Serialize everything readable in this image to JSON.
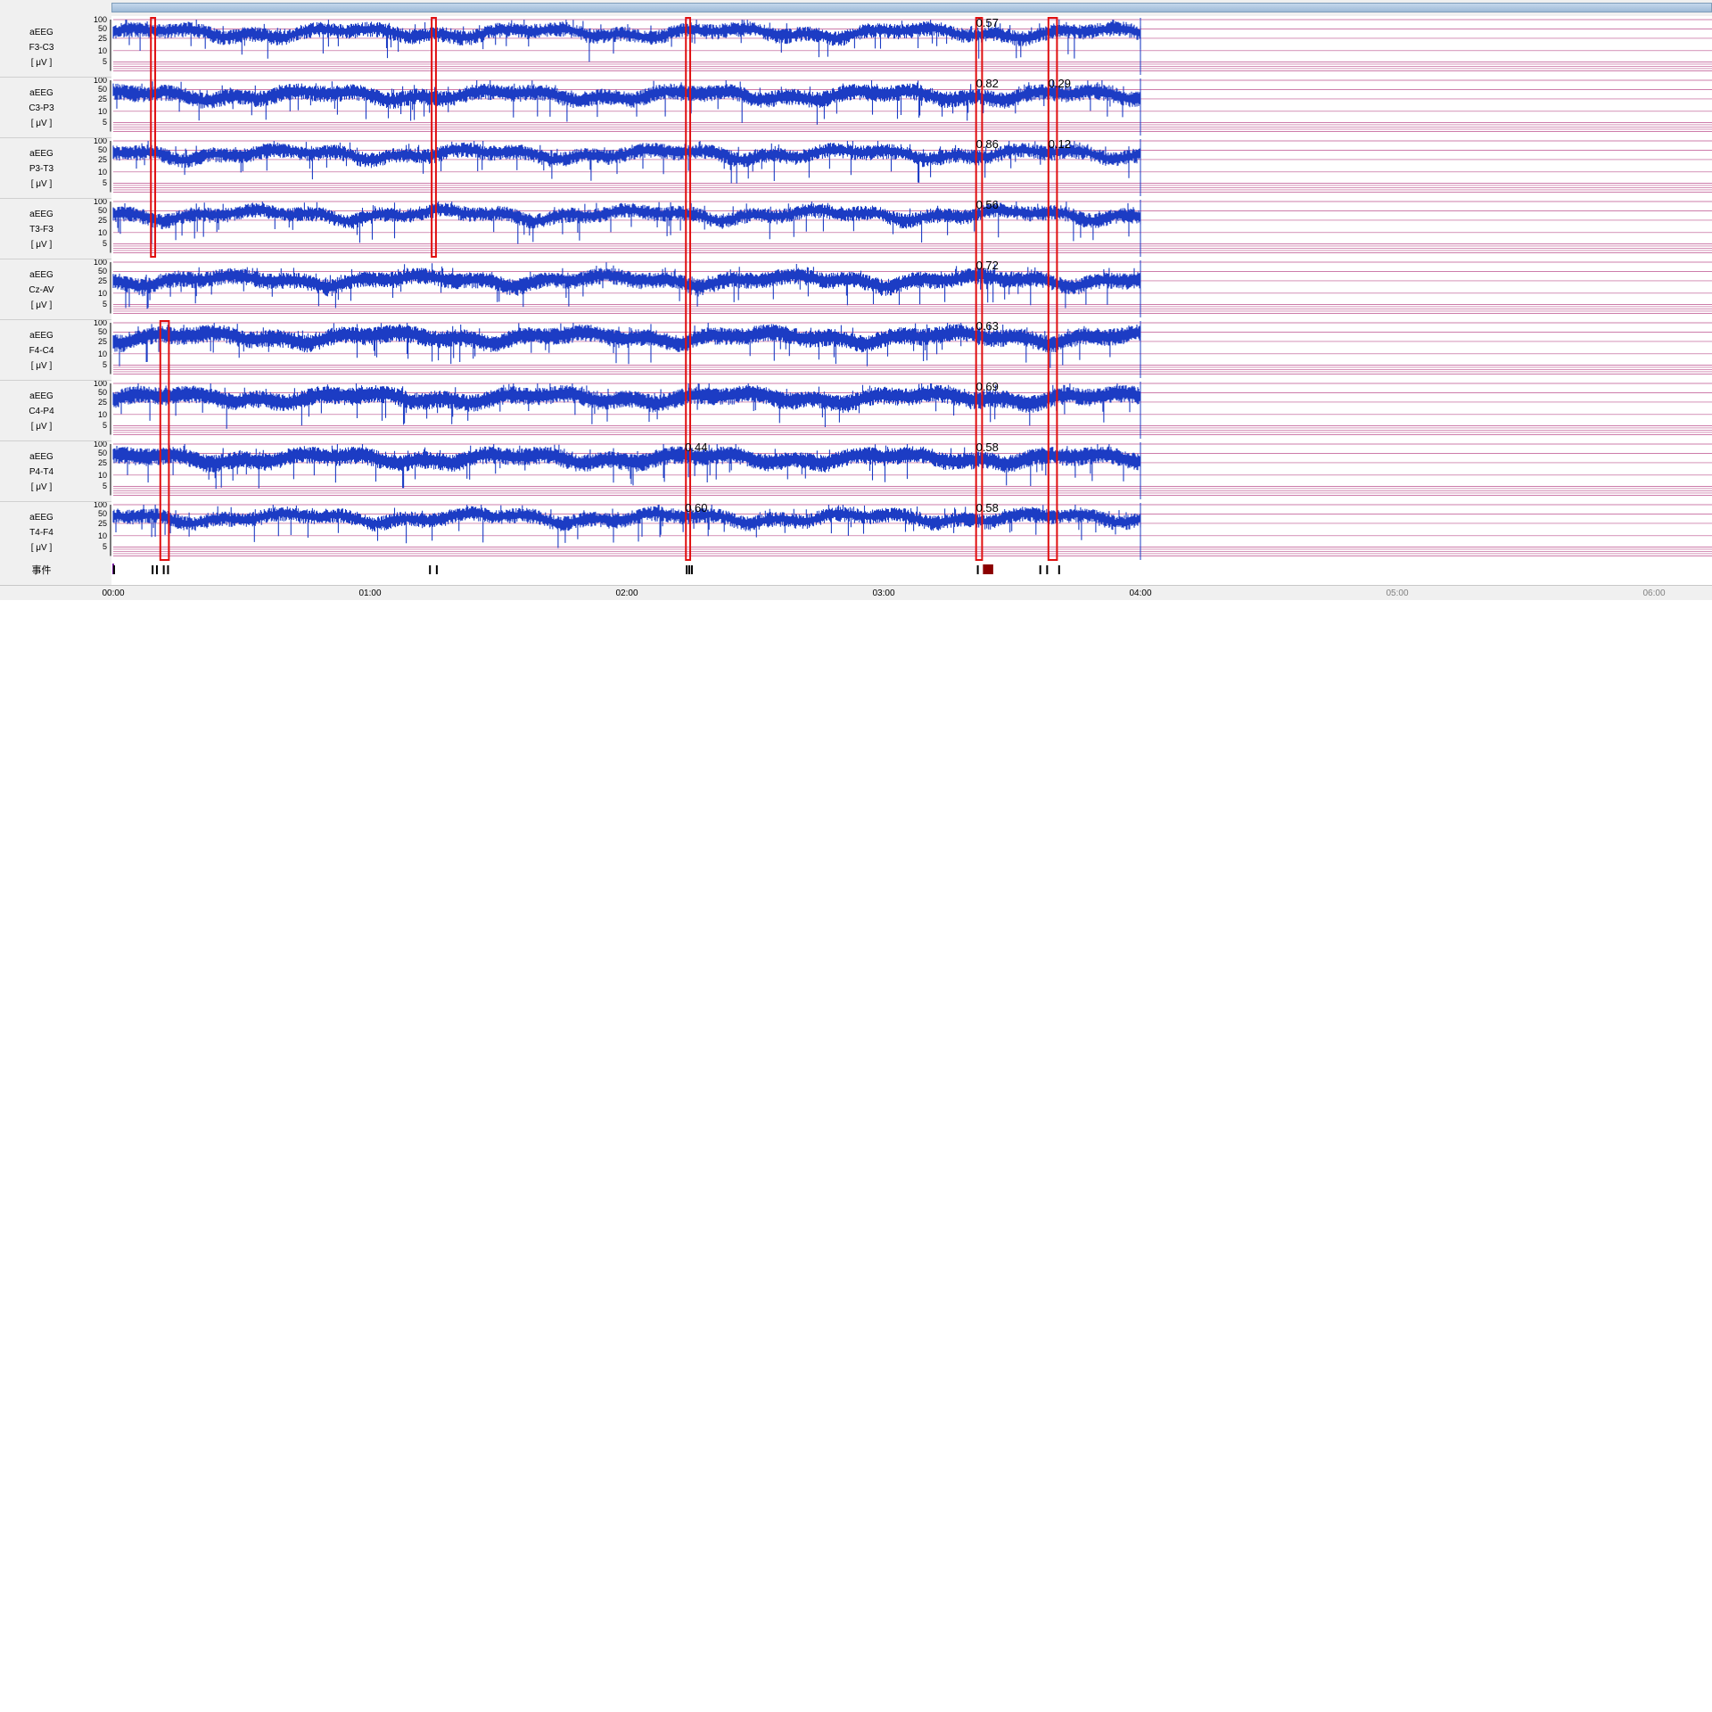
{
  "scrollbar": {},
  "channels": [
    {
      "type": "aEEG",
      "lead": "F3-C3",
      "unit": "[ μV ]",
      "marks": [
        "0.57"
      ]
    },
    {
      "type": "aEEG",
      "lead": "C3-P3",
      "unit": "[ μV ]",
      "marks": [
        "0.82",
        "0.29"
      ]
    },
    {
      "type": "aEEG",
      "lead": "P3-T3",
      "unit": "[ μV ]",
      "marks": [
        "0.86",
        "0.12"
      ]
    },
    {
      "type": "aEEG",
      "lead": "T3-F3",
      "unit": "[ μV ]",
      "marks": [
        "0.56"
      ]
    },
    {
      "type": "aEEG",
      "lead": "Cz-AV",
      "unit": "[ μV ]",
      "marks": [
        "0.72"
      ]
    },
    {
      "type": "aEEG",
      "lead": "F4-C4",
      "unit": "[ μV ]",
      "marks": [
        "0.63"
      ]
    },
    {
      "type": "aEEG",
      "lead": "C4-P4",
      "unit": "[ μV ]",
      "marks": [
        "0.69"
      ]
    },
    {
      "type": "aEEG",
      "lead": "P4-T4",
      "unit": "[ μV ]",
      "marks": [
        "0.44",
        "0.58"
      ]
    },
    {
      "type": "aEEG",
      "lead": "T4-F4",
      "unit": "[ μV ]",
      "marks": [
        "0.60",
        "0.58"
      ]
    }
  ],
  "y_ticks": [
    "100",
    "50",
    "25",
    "10",
    "5"
  ],
  "events_label": "事件",
  "time_axis": {
    "labels": [
      "00:00",
      "01:00",
      "02:00",
      "03:00",
      "04:00",
      "05:00",
      "06:00"
    ],
    "recorded_until": "04:00"
  },
  "colors": {
    "trace": "#1c3cc4",
    "grid": "#b0327a",
    "highlight": "#e01010",
    "event": "#000000",
    "event_dark": "#8b0000",
    "future_label": "#808080"
  },
  "chart_data": {
    "type": "line",
    "title": "",
    "xlabel": "",
    "ylabel": "[ μV ]",
    "x_unit": "minutes",
    "xlim": [
      0,
      360
    ],
    "recorded_range": [
      0,
      240
    ],
    "y_scale": "semi-log",
    "y_ticks": [
      100,
      50,
      25,
      10,
      5
    ],
    "series": [
      {
        "name": "F3-C3",
        "upper_margin_uV": 55,
        "lower_margin_uV": 30
      },
      {
        "name": "C3-P3",
        "upper_margin_uV": 50,
        "lower_margin_uV": 25
      },
      {
        "name": "P3-T3",
        "upper_margin_uV": 55,
        "lower_margin_uV": 30
      },
      {
        "name": "T3-F3",
        "upper_margin_uV": 55,
        "lower_margin_uV": 30
      },
      {
        "name": "Cz-AV",
        "upper_margin_uV": 40,
        "lower_margin_uV": 20
      },
      {
        "name": "F4-C4",
        "upper_margin_uV": 55,
        "lower_margin_uV": 25
      },
      {
        "name": "C4-P4",
        "upper_margin_uV": 55,
        "lower_margin_uV": 25
      },
      {
        "name": "P4-T4",
        "upper_margin_uV": 55,
        "lower_margin_uV": 25
      },
      {
        "name": "T4-F4",
        "upper_margin_uV": 55,
        "lower_margin_uV": 30
      }
    ],
    "highlights": [
      {
        "start_min": 8.8,
        "end_min": 9.8,
        "channels": [
          0,
          1,
          2,
          3
        ]
      },
      {
        "start_min": 74.4,
        "end_min": 75.4,
        "channels": [
          0,
          1,
          2,
          3
        ]
      },
      {
        "start_min": 133.8,
        "end_min": 134.8,
        "channels": [
          0,
          1,
          2,
          3,
          4,
          5,
          6,
          7,
          8
        ]
      },
      {
        "start_min": 201.6,
        "end_min": 203.0,
        "channels": [
          0,
          1,
          2,
          3,
          4,
          5,
          6,
          7,
          8
        ]
      },
      {
        "start_min": 218.5,
        "end_min": 220.5,
        "channels": [
          0,
          1,
          2,
          3,
          4,
          5,
          6,
          7,
          8
        ]
      },
      {
        "start_min": 11.0,
        "end_min": 13.0,
        "channels": [
          5,
          6,
          7,
          8
        ]
      }
    ],
    "events_min": [
      0.2,
      9.2,
      10.2,
      11.8,
      12.8,
      74.0,
      75.6,
      134.0,
      134.6,
      135.2,
      202.0,
      216.6,
      218.2,
      221.0
    ],
    "event_block_min": [
      203.2,
      205.6
    ]
  }
}
